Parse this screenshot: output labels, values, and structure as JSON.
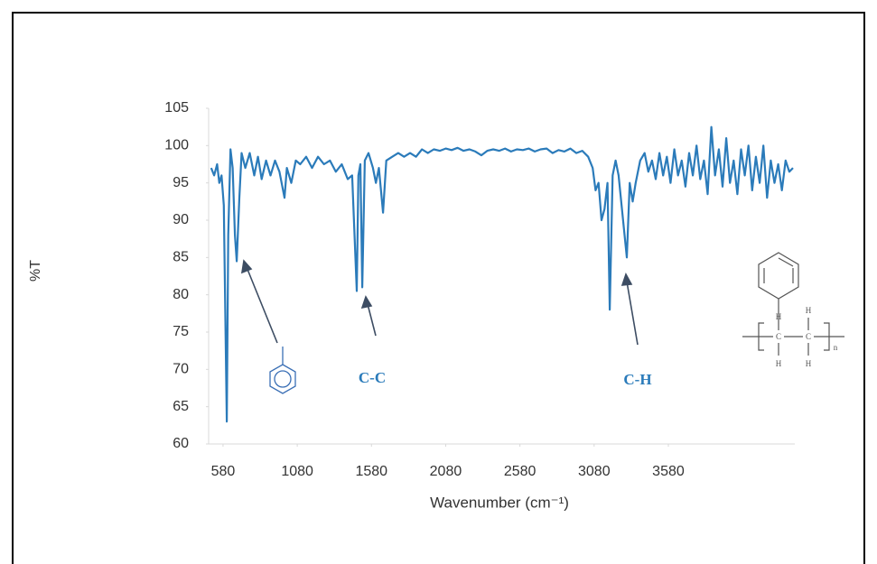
{
  "chart_data": {
    "type": "line",
    "x_label": "Wavenumber (cm⁻¹)",
    "y_label": "%T",
    "color": "#2b7bba",
    "x": [
      500,
      520,
      540,
      555,
      570,
      585,
      605,
      615,
      630,
      645,
      660,
      672,
      690,
      705,
      730,
      760,
      790,
      815,
      840,
      870,
      900,
      930,
      960,
      994,
      1010,
      1040,
      1070,
      1100,
      1140,
      1180,
      1220,
      1260,
      1300,
      1340,
      1380,
      1420,
      1450,
      1481,
      1492,
      1505,
      1518,
      1535,
      1560,
      1590,
      1610,
      1630,
      1658,
      1680,
      1720,
      1760,
      1800,
      1840,
      1880,
      1920,
      1960,
      2000,
      2040,
      2080,
      2120,
      2160,
      2200,
      2240,
      2280,
      2320,
      2360,
      2400,
      2440,
      2480,
      2520,
      2560,
      2600,
      2640,
      2680,
      2720,
      2760,
      2800,
      2840,
      2880,
      2920,
      2960,
      3000,
      3040,
      3070,
      3090,
      3110,
      3130,
      3150,
      3170,
      3185,
      3205,
      3225,
      3245,
      3265,
      3300,
      3320,
      3340,
      3360,
      3390,
      3420,
      3445,
      3470,
      3495,
      3520,
      3545,
      3570,
      3595,
      3620,
      3645,
      3670,
      3695,
      3720,
      3745,
      3770,
      3795,
      3820,
      3845,
      3870,
      3895,
      3920,
      3945,
      3970,
      3995,
      4020,
      4045,
      4070,
      4095,
      4120,
      4145,
      4170,
      4195,
      4220,
      4245,
      4270,
      4295,
      4320,
      4345,
      4370,
      4395,
      4420
    ],
    "values": [
      97,
      96,
      97.5,
      95,
      96,
      92,
      63,
      88,
      99.5,
      97,
      88,
      84.5,
      93,
      99,
      97,
      99,
      96,
      98.5,
      95.5,
      98,
      96,
      98,
      96.5,
      93,
      97,
      95,
      98,
      97.5,
      98.5,
      97,
      98.5,
      97.5,
      98,
      96.5,
      97.5,
      95.5,
      96,
      80.5,
      96,
      97.5,
      81,
      98,
      99,
      97,
      95,
      97,
      91,
      98,
      98.5,
      99,
      98.5,
      99,
      98.5,
      99.5,
      99,
      99.5,
      99.3,
      99.6,
      99.4,
      99.7,
      99.3,
      99.5,
      99.2,
      98.7,
      99.3,
      99.5,
      99.3,
      99.6,
      99.2,
      99.5,
      99.4,
      99.6,
      99.2,
      99.5,
      99.6,
      99,
      99.4,
      99.2,
      99.6,
      99,
      99.3,
      98.5,
      97,
      94,
      95,
      90,
      91.5,
      95,
      78,
      96,
      98,
      96,
      92,
      85,
      95,
      92.5,
      95,
      98,
      99,
      96.5,
      98,
      95.5,
      99,
      96,
      98.5,
      95,
      99.5,
      96,
      98,
      94.5,
      99,
      96,
      100,
      95.5,
      98,
      93.5,
      102.5,
      96,
      99.5,
      94.5,
      101,
      95,
      98,
      93.5,
      99.5,
      96,
      100,
      94,
      98.5,
      95,
      100,
      93,
      98,
      95,
      97.5,
      94,
      98,
      96.5,
      97
    ],
    "xlim": [
      483,
      4432
    ],
    "xticks": [
      580,
      1080,
      1580,
      2080,
      2580,
      3080,
      3580
    ],
    "ylim": [
      60,
      105
    ],
    "yticks": [
      60,
      65,
      70,
      75,
      80,
      85,
      90,
      95,
      100,
      105
    ],
    "annotations": [
      "C-C",
      "C-H"
    ],
    "structure_text": [
      "H",
      "H",
      "C",
      "C",
      "H",
      "H",
      "n"
    ]
  }
}
